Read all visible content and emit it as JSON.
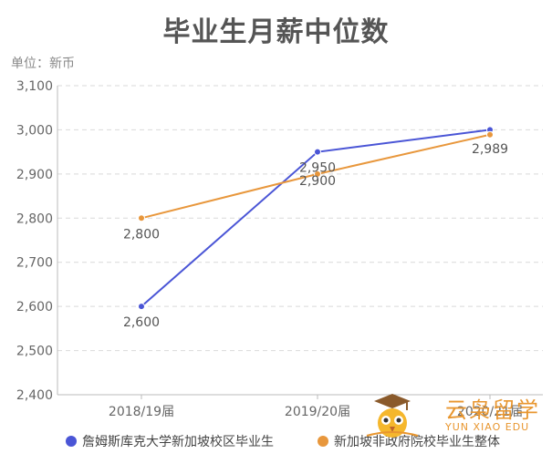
{
  "title": "毕业生月薪中位数",
  "unit_label": "单位：新币",
  "logo": {
    "text": "云枭留学",
    "subtext": "YUN XIAO EDU"
  },
  "chart_data": {
    "type": "line",
    "categories": [
      "2018/19届",
      "2019/20届",
      "2020/21届"
    ],
    "ylim": [
      2400,
      3100
    ],
    "yticks": [
      2400,
      2500,
      2600,
      2700,
      2800,
      2900,
      3000,
      3100
    ],
    "ytick_labels": [
      "2,400",
      "2,500",
      "2,600",
      "2,700",
      "2,800",
      "2,900",
      "3,000",
      "3,100"
    ],
    "grid": true,
    "legend_position": "bottom",
    "series": [
      {
        "name": "詹姆斯库克大学新加坡校区毕业生",
        "color": "#4a55d6",
        "values": [
          2600,
          2950,
          3000
        ],
        "labels": [
          "2,600",
          "2,950",
          ""
        ]
      },
      {
        "name": "新加坡非政府院校毕业生整体",
        "color": "#e8973c",
        "values": [
          2800,
          2900,
          2989
        ],
        "labels": [
          "2,800",
          "2,900",
          "2,989"
        ]
      }
    ]
  }
}
